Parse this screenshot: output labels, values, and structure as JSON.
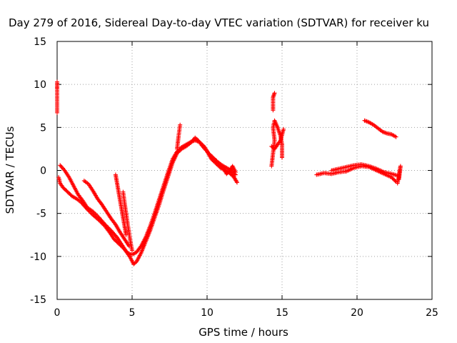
{
  "chart_data": {
    "type": "scatter",
    "title": "Day 279 of 2016, Sidereal Day-to-day VTEC variation (SDTVAR) for receiver ku",
    "xlabel": "GPS time / hours",
    "ylabel": "SDTVAR / TECUs",
    "xlim": [
      0,
      25
    ],
    "ylim": [
      -15,
      15
    ],
    "xticks": [
      "0",
      "5",
      "10",
      "15",
      "20",
      "25"
    ],
    "yticks": [
      "-15",
      "-10",
      "-5",
      "0",
      "5",
      "10",
      "15"
    ],
    "grid": true,
    "marker": "+",
    "color": "#ff0000",
    "segments": [
      [
        [
          0.0,
          9.5
        ],
        [
          0.0,
          10.3
        ],
        [
          0.0,
          6.7
        ]
      ],
      [
        [
          0.1,
          -0.8
        ],
        [
          0.2,
          -1.5
        ],
        [
          0.4,
          -2.0
        ],
        [
          0.7,
          -2.5
        ],
        [
          1.0,
          -3.0
        ],
        [
          1.3,
          -3.3
        ],
        [
          1.6,
          -3.7
        ],
        [
          2.0,
          -4.5
        ],
        [
          2.4,
          -5.2
        ],
        [
          2.8,
          -5.8
        ],
        [
          3.2,
          -6.5
        ],
        [
          3.5,
          -7.2
        ],
        [
          3.8,
          -8.0
        ],
        [
          4.1,
          -8.5
        ],
        [
          4.4,
          -9.0
        ],
        [
          4.7,
          -9.6
        ],
        [
          5.0,
          -9.8
        ],
        [
          5.3,
          -9.5
        ],
        [
          5.6,
          -8.8
        ],
        [
          5.9,
          -7.8
        ],
        [
          6.2,
          -6.5
        ],
        [
          6.5,
          -5.0
        ],
        [
          6.8,
          -3.4
        ],
        [
          7.1,
          -1.8
        ],
        [
          7.4,
          -0.2
        ],
        [
          7.7,
          1.3
        ],
        [
          8.0,
          2.2
        ],
        [
          8.3,
          2.7
        ],
        [
          8.6,
          3.0
        ],
        [
          8.9,
          3.3
        ],
        [
          9.2,
          3.5
        ],
        [
          9.5,
          3.3
        ],
        [
          9.8,
          2.8
        ],
        [
          10.1,
          2.0
        ],
        [
          10.4,
          1.5
        ],
        [
          10.7,
          1.0
        ],
        [
          11.0,
          0.6
        ],
        [
          11.3,
          0.3
        ],
        [
          11.6,
          0.0
        ],
        [
          11.9,
          -0.5
        ]
      ],
      [
        [
          0.2,
          0.6
        ],
        [
          0.5,
          0.0
        ],
        [
          0.8,
          -0.8
        ],
        [
          1.1,
          -1.8
        ],
        [
          1.4,
          -2.8
        ],
        [
          1.7,
          -3.5
        ],
        [
          2.0,
          -4.3
        ],
        [
          2.4,
          -4.8
        ],
        [
          2.8,
          -5.5
        ],
        [
          3.2,
          -6.3
        ],
        [
          3.6,
          -7.0
        ],
        [
          4.0,
          -7.8
        ],
        [
          4.3,
          -8.6
        ],
        [
          4.6,
          -9.4
        ],
        [
          4.9,
          -10.2
        ],
        [
          5.1,
          -10.9
        ],
        [
          5.3,
          -10.6
        ],
        [
          5.6,
          -9.6
        ],
        [
          5.9,
          -8.3
        ],
        [
          6.2,
          -7.0
        ],
        [
          6.5,
          -5.5
        ],
        [
          6.8,
          -4.0
        ],
        [
          7.1,
          -2.3
        ],
        [
          7.4,
          -0.7
        ],
        [
          7.7,
          0.9
        ],
        [
          8.0,
          2.0
        ],
        [
          8.3,
          2.5
        ],
        [
          8.6,
          2.8
        ],
        [
          8.9,
          3.2
        ],
        [
          9.2,
          3.8
        ],
        [
          9.4,
          3.5
        ],
        [
          9.7,
          2.8
        ],
        [
          10.0,
          2.2
        ],
        [
          10.3,
          1.3
        ],
        [
          10.6,
          0.8
        ],
        [
          10.9,
          0.3
        ],
        [
          11.2,
          0.0
        ],
        [
          11.5,
          -0.3
        ],
        [
          11.8,
          -0.8
        ],
        [
          12.0,
          -1.4
        ]
      ],
      [
        [
          1.8,
          -1.2
        ],
        [
          2.1,
          -1.6
        ],
        [
          2.4,
          -2.4
        ],
        [
          2.7,
          -3.3
        ],
        [
          3.0,
          -4.0
        ],
        [
          3.3,
          -4.8
        ],
        [
          3.6,
          -5.6
        ],
        [
          3.9,
          -6.3
        ],
        [
          4.2,
          -7.2
        ],
        [
          4.5,
          -8.0
        ],
        [
          4.8,
          -8.8
        ]
      ],
      [
        [
          3.9,
          -0.5
        ],
        [
          4.0,
          -1.5
        ],
        [
          4.1,
          -2.5
        ],
        [
          4.2,
          -3.5
        ],
        [
          4.3,
          -4.5
        ],
        [
          4.4,
          -5.5
        ],
        [
          4.5,
          -6.5
        ],
        [
          4.6,
          -7.5
        ]
      ],
      [
        [
          4.4,
          -2.5
        ],
        [
          4.5,
          -3.8
        ],
        [
          4.6,
          -5.0
        ],
        [
          4.7,
          -6.2
        ],
        [
          4.8,
          -7.3
        ],
        [
          4.9,
          -8.4
        ],
        [
          5.0,
          -9.3
        ]
      ],
      [
        [
          8.0,
          2.5
        ],
        [
          8.1,
          4.0
        ],
        [
          8.2,
          5.3
        ]
      ],
      [
        [
          10.5,
          1.2
        ],
        [
          10.8,
          0.8
        ],
        [
          11.1,
          0.2
        ],
        [
          11.3,
          -0.4
        ],
        [
          11.5,
          -0.1
        ],
        [
          11.7,
          0.5
        ],
        [
          11.9,
          -0.2
        ]
      ],
      [
        [
          14.3,
          0.5
        ],
        [
          14.4,
          2.0
        ],
        [
          14.5,
          3.5
        ],
        [
          14.4,
          5.0
        ],
        [
          14.5,
          5.8
        ],
        [
          14.7,
          5.0
        ],
        [
          14.9,
          4.0
        ],
        [
          15.0,
          3.0
        ],
        [
          15.0,
          1.5
        ]
      ],
      [
        [
          14.4,
          7.0
        ],
        [
          14.4,
          8.5
        ],
        [
          14.5,
          9.0
        ]
      ],
      [
        [
          14.3,
          2.8
        ],
        [
          14.5,
          2.5
        ],
        [
          14.7,
          3.0
        ],
        [
          14.9,
          3.5
        ],
        [
          15.1,
          4.8
        ]
      ],
      [
        [
          17.3,
          -0.5
        ],
        [
          17.8,
          -0.3
        ],
        [
          18.3,
          -0.4
        ],
        [
          18.8,
          -0.2
        ],
        [
          19.3,
          -0.1
        ],
        [
          19.8,
          0.3
        ],
        [
          20.3,
          0.5
        ],
        [
          20.8,
          0.4
        ],
        [
          21.3,
          0.0
        ],
        [
          21.8,
          -0.4
        ],
        [
          22.3,
          -0.8
        ],
        [
          22.6,
          -1.3
        ]
      ],
      [
        [
          18.3,
          0.0
        ],
        [
          18.8,
          0.2
        ],
        [
          19.3,
          0.4
        ],
        [
          19.8,
          0.6
        ],
        [
          20.3,
          0.7
        ],
        [
          20.8,
          0.5
        ],
        [
          21.3,
          0.2
        ],
        [
          21.8,
          -0.2
        ],
        [
          22.3,
          -0.4
        ],
        [
          22.7,
          -0.6
        ]
      ],
      [
        [
          20.5,
          5.8
        ],
        [
          20.8,
          5.6
        ],
        [
          21.1,
          5.3
        ],
        [
          21.4,
          4.9
        ],
        [
          21.7,
          4.5
        ],
        [
          22.0,
          4.3
        ],
        [
          22.3,
          4.2
        ],
        [
          22.6,
          3.9
        ]
      ],
      [
        [
          22.7,
          -1.5
        ],
        [
          22.8,
          -0.5
        ],
        [
          22.9,
          0.5
        ],
        [
          22.8,
          -1.0
        ]
      ]
    ]
  }
}
